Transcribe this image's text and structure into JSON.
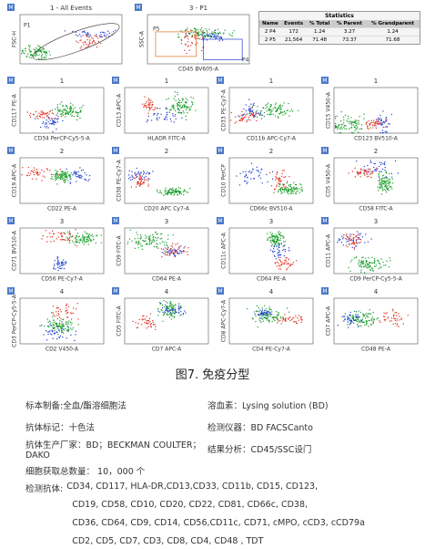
{
  "top": {
    "plots": [
      {
        "title": "1 - All Events",
        "y_label": "FSC-H",
        "gate": "P1"
      },
      {
        "title": "3 - P1",
        "y_label": "SSC-A",
        "x_label": "CD45 BV605-A",
        "gates": [
          "P5",
          "P4"
        ]
      }
    ],
    "statistics": {
      "title": "Statistics",
      "columns": [
        "Name",
        "Events",
        "% Total",
        "% Parent",
        "% Grandparent"
      ],
      "rows": [
        [
          "2 P4",
          "172",
          "1.24",
          "3.27",
          "1.24"
        ],
        [
          "2 P5",
          "21,564",
          "71.48",
          "73.37",
          "71.68"
        ]
      ]
    }
  },
  "grid": [
    {
      "title": "1",
      "plots": [
        {
          "y_label": "CD117 PE-A",
          "x_label": "CD34 PerCP-Cy5-5-A"
        },
        {
          "y_label": "CD13 APC-A",
          "x_label": "HLADR FITC-A"
        },
        {
          "y_label": "CD33 PE-Cy7-A",
          "x_label": "CD11b APC-Cy7-A"
        },
        {
          "y_label": "CD15 V450-A",
          "x_label": "CD123 BV510-A"
        }
      ]
    },
    {
      "title": "2",
      "plots": [
        {
          "y_label": "CD19 APC-A",
          "x_label": "CD22 PE-A"
        },
        {
          "y_label": "CD38 PE-Cy7-A",
          "x_label": "CD20 APC Cy7-A"
        },
        {
          "y_label": "CD10 PerCP",
          "x_label": "CD66c BV510-A"
        },
        {
          "y_label": "CD5 V450-A",
          "x_label": "CD58 FITC-A"
        }
      ]
    },
    {
      "title": "3",
      "plots": [
        {
          "y_label": "CD71 BV510-A",
          "x_label": "CD56 PE-Cy7-A"
        },
        {
          "y_label": "CD9 FITC-A",
          "x_label": "CD64 PE-A"
        },
        {
          "y_label": "CD11c APC-A",
          "x_label": "CD64 PE-A"
        },
        {
          "y_label": "CD11 APC-A",
          "x_label": "CD9 PerCP-Cy5-5-A"
        }
      ]
    },
    {
      "title": "4",
      "plots": [
        {
          "y_label": "CD3 PerCP-Cy5-5-A",
          "x_label": "CD2 V450-A"
        },
        {
          "y_label": "CD5 FITC-A",
          "x_label": "CD7 APC-A"
        },
        {
          "y_label": "CD8 APC-Cy7-A",
          "x_label": "CD4 PE-Cy7-A"
        },
        {
          "y_label": "CD7 APC-A",
          "x_label": "CD48 PE-A"
        }
      ]
    }
  ],
  "badge": "M",
  "caption": "图7. 免疫分型",
  "info": [
    [
      "标本制备:全血/酯溶细胞法",
      "溶血素：Lysing solution (BD)"
    ],
    [
      "抗体标记：十色法",
      "检测仪器：BD FACSCanto"
    ],
    [
      "抗体生产厂家：BD；BECKMAN COULTER；DAKO",
      "结果分析：CD45/SSC设门"
    ],
    [
      "细胞获取总数量： 10，000 个"
    ]
  ],
  "antibodies": {
    "label": "检测抗体:",
    "lines": [
      "CD34, CD117, HLA-DR,CD13,CD33, CD11b, CD15, CD123,",
      "CD19, CD58, CD10, CD20, CD22, CD81, CD66c, CD38,",
      "CD36, CD64, CD9, CD14, CD56,CD11c, CD71, cMPO, cCD3, cCD79a",
      "CD2, CD5, CD7, CD3, CD8, CD4, CD48 , TDT"
    ]
  }
}
